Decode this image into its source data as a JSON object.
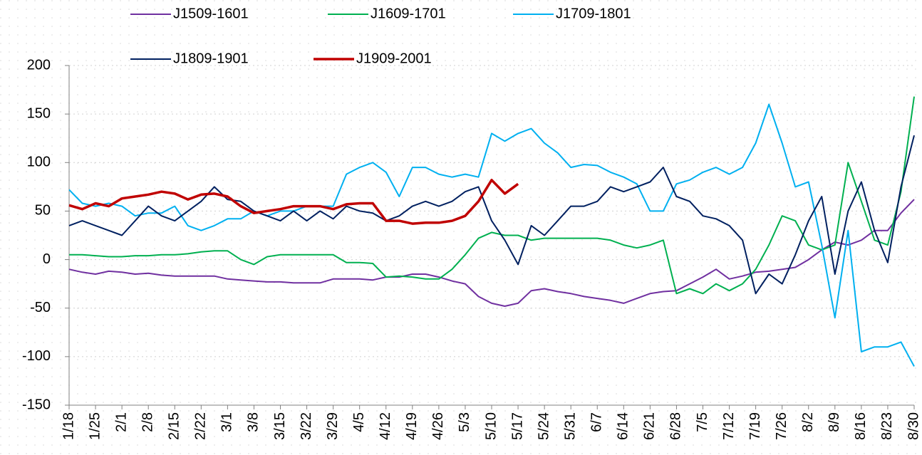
{
  "chart_data": {
    "type": "line",
    "categories": [
      "1/18",
      null,
      "1/25",
      null,
      "2/1",
      null,
      "2/8",
      null,
      "2/15",
      null,
      "2/22",
      null,
      "3/1",
      null,
      "3/8",
      null,
      "3/15",
      null,
      "3/22",
      null,
      "3/29",
      null,
      "4/5",
      null,
      "4/12",
      null,
      "4/19",
      null,
      "4/26",
      null,
      "5/3",
      null,
      "5/10",
      null,
      "5/17",
      null,
      "5/24",
      null,
      "5/31",
      null,
      "6/7",
      null,
      "6/14",
      null,
      "6/21",
      null,
      "6/28",
      null,
      "7/5",
      null,
      "7/12",
      null,
      "7/19",
      null,
      "7/26",
      null,
      "8/2",
      null,
      "8/9",
      null,
      "8/16",
      null,
      "8/23",
      null,
      "8/30"
    ],
    "series": [
      {
        "name": "J1509-1601",
        "color": "#7030a0",
        "values": [
          -10,
          -13,
          -15,
          -12,
          -13,
          -15,
          -14,
          -16,
          -17,
          -17,
          -17,
          -17,
          -20,
          -21,
          -22,
          -23,
          -23,
          -24,
          -24,
          -24,
          -20,
          -20,
          -20,
          -21,
          -18,
          -18,
          -15,
          -15,
          -18,
          -22,
          -25,
          -38,
          -45,
          -48,
          -45,
          -32,
          -30,
          -33,
          -35,
          -38,
          -40,
          -42,
          -45,
          -40,
          -35,
          -33,
          -32,
          -25,
          -18,
          -10,
          -20,
          -17,
          -13,
          -12,
          -10,
          -8,
          0,
          10,
          18,
          15,
          20,
          30,
          30,
          48,
          62
        ]
      },
      {
        "name": "J1609-1701",
        "color": "#00b050",
        "values": [
          5,
          5,
          4,
          3,
          3,
          4,
          4,
          5,
          5,
          6,
          8,
          9,
          9,
          0,
          -5,
          3,
          5,
          5,
          5,
          5,
          5,
          -3,
          -3,
          -4,
          -18,
          -17,
          -18,
          -20,
          -20,
          -10,
          5,
          22,
          28,
          25,
          25,
          20,
          22,
          22,
          22,
          22,
          22,
          20,
          15,
          12,
          15,
          20,
          -35,
          -30,
          -35,
          -25,
          -32,
          -25,
          -10,
          15,
          45,
          40,
          15,
          10,
          15,
          100,
          60,
          20,
          15,
          70,
          168
        ]
      },
      {
        "name": "J1709-1801",
        "color": "#00b0f0",
        "values": [
          72,
          58,
          55,
          58,
          55,
          45,
          48,
          48,
          55,
          35,
          30,
          35,
          42,
          42,
          50,
          45,
          50,
          50,
          55,
          55,
          55,
          88,
          95,
          100,
          90,
          65,
          95,
          95,
          88,
          85,
          88,
          85,
          130,
          122,
          130,
          135,
          120,
          110,
          95,
          98,
          97,
          90,
          85,
          78,
          50,
          50,
          78,
          82,
          90,
          95,
          88,
          95,
          120,
          160,
          120,
          75,
          80,
          15,
          -60,
          30,
          -95,
          -90,
          -90,
          -85,
          -110
        ]
      },
      {
        "name": "J1809-1901",
        "color": "#002060",
        "values": [
          35,
          40,
          35,
          30,
          25,
          40,
          55,
          45,
          40,
          50,
          60,
          75,
          62,
          60,
          50,
          45,
          40,
          50,
          40,
          50,
          42,
          55,
          50,
          48,
          40,
          45,
          55,
          60,
          55,
          60,
          70,
          75,
          40,
          20,
          -5,
          35,
          25,
          40,
          55,
          55,
          60,
          75,
          70,
          75,
          80,
          95,
          65,
          60,
          45,
          42,
          35,
          20,
          -35,
          -15,
          -25,
          5,
          40,
          65,
          -15,
          50,
          80,
          30,
          -3,
          75,
          128
        ]
      },
      {
        "name": "J1909-2001",
        "color": "#c00000",
        "values": [
          56,
          52,
          58,
          55,
          63,
          65,
          67,
          70,
          68,
          62,
          67,
          68,
          65,
          55,
          48,
          50,
          52,
          55,
          55,
          55,
          52,
          57,
          58,
          58,
          40,
          40,
          37,
          38,
          38,
          40,
          45,
          60,
          82,
          68,
          78,
          null,
          null,
          null,
          null,
          null,
          null,
          null,
          null,
          null,
          null,
          null,
          null,
          null,
          null,
          null,
          null,
          null,
          null,
          null,
          null,
          null,
          null,
          null,
          null,
          null,
          null,
          null,
          null,
          null,
          null
        ]
      }
    ],
    "ylim": [
      -150,
      200
    ],
    "yticks": [
      -150,
      -100,
      -50,
      0,
      50,
      100,
      150,
      200
    ],
    "grid": true
  }
}
